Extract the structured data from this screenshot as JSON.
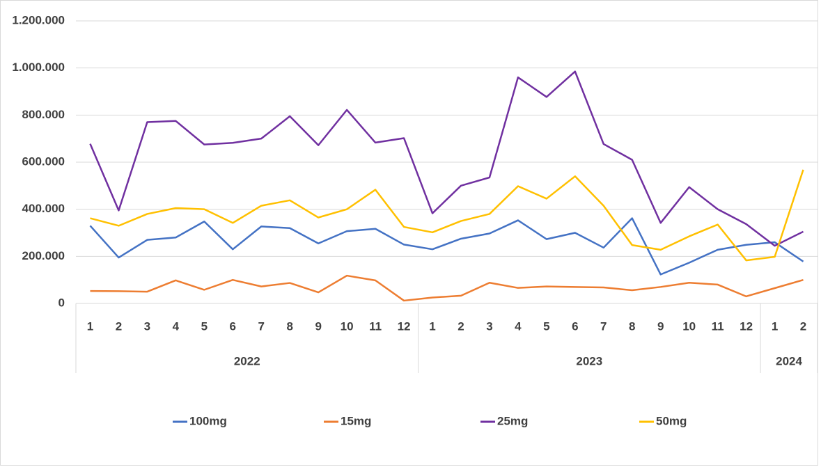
{
  "chart_data": {
    "type": "line",
    "category_groups": [
      {
        "label": "2022",
        "categories": [
          "1",
          "2",
          "3",
          "4",
          "5",
          "6",
          "7",
          "8",
          "9",
          "10",
          "11",
          "12"
        ]
      },
      {
        "label": "2023",
        "categories": [
          "1",
          "2",
          "3",
          "4",
          "5",
          "6",
          "7",
          "8",
          "9",
          "10",
          "11",
          "12"
        ]
      },
      {
        "label": "2024",
        "categories": [
          "1",
          "2"
        ]
      }
    ],
    "series": [
      {
        "name": "100mg",
        "color": "#4472c4",
        "values": [
          330000,
          195000,
          270000,
          280000,
          348000,
          230000,
          327000,
          320000,
          255000,
          307000,
          317000,
          250000,
          230000,
          275000,
          297000,
          353000,
          273000,
          300000,
          237000,
          362000,
          123000,
          173000,
          228000,
          249000,
          260000,
          178000
        ]
      },
      {
        "name": "15mg",
        "color": "#ed7d31",
        "values": [
          53000,
          52000,
          50000,
          98000,
          58000,
          100000,
          72000,
          87000,
          47000,
          118000,
          98000,
          12000,
          25000,
          33000,
          88000,
          66000,
          72000,
          70000,
          68000,
          56000,
          70000,
          88000,
          80000,
          30000,
          65000,
          100000
        ]
      },
      {
        "name": "25mg",
        "color": "#7030a0",
        "values": [
          678000,
          395000,
          770000,
          775000,
          675000,
          682000,
          700000,
          795000,
          672000,
          822000,
          683000,
          702000,
          383000,
          500000,
          535000,
          960000,
          877000,
          985000,
          677000,
          610000,
          342000,
          494000,
          400000,
          337000,
          245000,
          305000
        ]
      },
      {
        "name": "50mg",
        "color": "#ffc000",
        "values": [
          362000,
          330000,
          380000,
          405000,
          400000,
          342000,
          415000,
          438000,
          365000,
          400000,
          483000,
          325000,
          302000,
          350000,
          380000,
          498000,
          445000,
          540000,
          415000,
          248000,
          228000,
          285000,
          335000,
          183000,
          198000,
          568000
        ]
      }
    ],
    "ylim": [
      0,
      1200000
    ],
    "yticks": [
      0,
      {
        "value": 200000,
        "label": "200.000"
      },
      {
        "value": 400000,
        "label": "400.000"
      },
      {
        "value": 600000,
        "label": "600.000"
      },
      {
        "value": 800000,
        "label": "800.000"
      },
      {
        "value": 1000000,
        "label": "1.000.000"
      },
      {
        "value": 1200000,
        "label": "1.200.000"
      }
    ],
    "grid": true,
    "legend": "bottom"
  }
}
